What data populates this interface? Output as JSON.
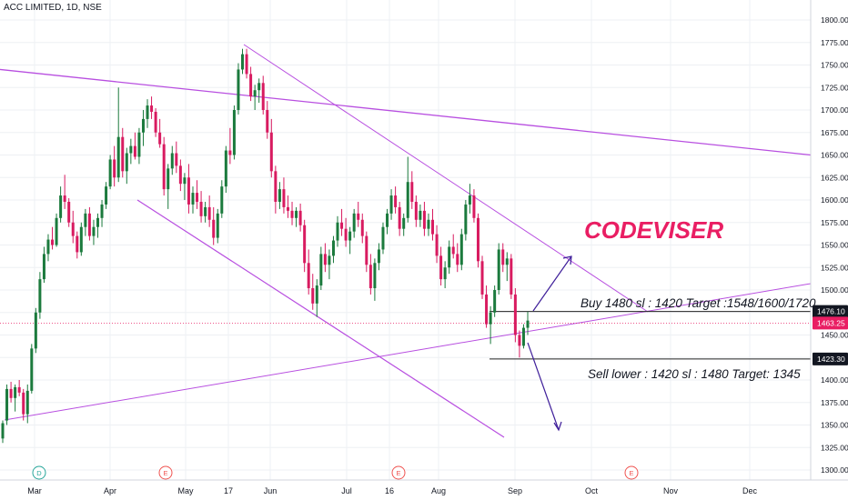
{
  "header": {
    "title": "ACC LIMITED, 1D, NSE"
  },
  "annotations": {
    "brand": "CODEVISER",
    "buy_note": "Buy 1480 sl : 1420 Target :1548/1600/1720",
    "sell_note": "Sell lower : 1420 sl : 1480 Target: 1345"
  },
  "colors": {
    "up": "#1b7a3d",
    "down": "#d81b60",
    "trendline": "#b84fe0",
    "arrow": "#3f1f9a",
    "level_line": "#222222",
    "price_line": "#e91e63"
  },
  "chart_data": {
    "type": "candlestick",
    "title": "ACC LIMITED, 1D, NSE",
    "ylim": [
      1290,
      1810
    ],
    "y_ticks": [
      1300,
      1325,
      1350,
      1375,
      1400,
      1425,
      1450,
      1475,
      1500,
      1525,
      1550,
      1575,
      1600,
      1625,
      1650,
      1675,
      1700,
      1725,
      1750,
      1775,
      1800
    ],
    "x_labels": [
      "Mar",
      "Apr",
      "May",
      "17",
      "Jun",
      "Jul",
      "16",
      "Aug",
      "Sep",
      "Oct",
      "Nov",
      "Dec"
    ],
    "grid": true,
    "price_labels": [
      {
        "value": 1476.1,
        "text": "1476.10",
        "style": "dark"
      },
      {
        "value": 1463.25,
        "text": "1463.25",
        "style": "accent"
      },
      {
        "value": 1423.3,
        "text": "1423.30",
        "style": "dark"
      }
    ],
    "horizontal_levels": [
      1476.1,
      1423.3
    ],
    "current_price": 1463.25,
    "event_markers": [
      {
        "label": "D",
        "near": "Mar"
      },
      {
        "label": "E",
        "near": "May"
      },
      {
        "label": "E",
        "near": "Aug"
      },
      {
        "label": "E",
        "near": "Oct/Nov"
      }
    ],
    "candles": [
      [
        1335,
        1355,
        1330,
        1352
      ],
      [
        1355,
        1395,
        1350,
        1390
      ],
      [
        1390,
        1398,
        1375,
        1380
      ],
      [
        1380,
        1395,
        1365,
        1392
      ],
      [
        1392,
        1400,
        1382,
        1386
      ],
      [
        1386,
        1390,
        1355,
        1362
      ],
      [
        1362,
        1395,
        1352,
        1388
      ],
      [
        1388,
        1440,
        1385,
        1435
      ],
      [
        1435,
        1480,
        1430,
        1475
      ],
      [
        1475,
        1520,
        1468,
        1512
      ],
      [
        1512,
        1548,
        1508,
        1540
      ],
      [
        1540,
        1562,
        1532,
        1556
      ],
      [
        1556,
        1570,
        1545,
        1550
      ],
      [
        1550,
        1585,
        1548,
        1580
      ],
      [
        1580,
        1615,
        1575,
        1605
      ],
      [
        1605,
        1628,
        1590,
        1598
      ],
      [
        1598,
        1602,
        1570,
        1575
      ],
      [
        1575,
        1588,
        1552,
        1560
      ],
      [
        1560,
        1565,
        1535,
        1542
      ],
      [
        1542,
        1575,
        1538,
        1570
      ],
      [
        1570,
        1590,
        1560,
        1585
      ],
      [
        1585,
        1592,
        1555,
        1560
      ],
      [
        1560,
        1578,
        1550,
        1570
      ],
      [
        1570,
        1585,
        1558,
        1580
      ],
      [
        1580,
        1600,
        1570,
        1595
      ],
      [
        1595,
        1620,
        1590,
        1615
      ],
      [
        1615,
        1650,
        1612,
        1645
      ],
      [
        1645,
        1660,
        1615,
        1625
      ],
      [
        1625,
        1725,
        1620,
        1670
      ],
      [
        1670,
        1680,
        1625,
        1632
      ],
      [
        1632,
        1658,
        1618,
        1652
      ],
      [
        1652,
        1668,
        1640,
        1660
      ],
      [
        1660,
        1675,
        1645,
        1648
      ],
      [
        1648,
        1680,
        1640,
        1675
      ],
      [
        1675,
        1700,
        1660,
        1690
      ],
      [
        1690,
        1712,
        1680,
        1705
      ],
      [
        1705,
        1715,
        1690,
        1698
      ],
      [
        1698,
        1702,
        1670,
        1675
      ],
      [
        1675,
        1690,
        1658,
        1662
      ],
      [
        1662,
        1670,
        1605,
        1612
      ],
      [
        1612,
        1640,
        1590,
        1635
      ],
      [
        1635,
        1660,
        1628,
        1652
      ],
      [
        1652,
        1665,
        1630,
        1638
      ],
      [
        1638,
        1645,
        1610,
        1618
      ],
      [
        1618,
        1630,
        1600,
        1625
      ],
      [
        1625,
        1640,
        1585,
        1595
      ],
      [
        1595,
        1615,
        1585,
        1608
      ],
      [
        1608,
        1622,
        1590,
        1598
      ],
      [
        1598,
        1610,
        1575,
        1582
      ],
      [
        1582,
        1598,
        1575,
        1592
      ],
      [
        1592,
        1605,
        1570,
        1578
      ],
      [
        1578,
        1592,
        1550,
        1558
      ],
      [
        1558,
        1590,
        1552,
        1585
      ],
      [
        1585,
        1622,
        1580,
        1615
      ],
      [
        1615,
        1660,
        1608,
        1655
      ],
      [
        1655,
        1680,
        1640,
        1650
      ],
      [
        1650,
        1705,
        1645,
        1700
      ],
      [
        1700,
        1752,
        1695,
        1745
      ],
      [
        1745,
        1768,
        1740,
        1762
      ],
      [
        1762,
        1768,
        1735,
        1740
      ],
      [
        1740,
        1748,
        1710,
        1715
      ],
      [
        1715,
        1728,
        1700,
        1722
      ],
      [
        1722,
        1735,
        1708,
        1730
      ],
      [
        1730,
        1738,
        1695,
        1700
      ],
      [
        1700,
        1710,
        1668,
        1675
      ],
      [
        1675,
        1690,
        1625,
        1632
      ],
      [
        1632,
        1638,
        1585,
        1598
      ],
      [
        1598,
        1620,
        1590,
        1612
      ],
      [
        1612,
        1625,
        1585,
        1592
      ],
      [
        1592,
        1605,
        1580,
        1588
      ],
      [
        1588,
        1598,
        1572,
        1580
      ],
      [
        1580,
        1592,
        1570,
        1588
      ],
      [
        1588,
        1596,
        1565,
        1572
      ],
      [
        1572,
        1578,
        1520,
        1530
      ],
      [
        1530,
        1545,
        1495,
        1502
      ],
      [
        1502,
        1518,
        1478,
        1485
      ],
      [
        1485,
        1512,
        1470,
        1505
      ],
      [
        1505,
        1548,
        1500,
        1540
      ],
      [
        1540,
        1552,
        1520,
        1528
      ],
      [
        1528,
        1545,
        1512,
        1538
      ],
      [
        1538,
        1560,
        1530,
        1555
      ],
      [
        1555,
        1582,
        1548,
        1575
      ],
      [
        1575,
        1590,
        1560,
        1568
      ],
      [
        1568,
        1580,
        1548,
        1555
      ],
      [
        1555,
        1570,
        1540,
        1565
      ],
      [
        1565,
        1590,
        1558,
        1585
      ],
      [
        1585,
        1598,
        1570,
        1578
      ],
      [
        1578,
        1585,
        1552,
        1560
      ],
      [
        1560,
        1565,
        1520,
        1528
      ],
      [
        1528,
        1540,
        1495,
        1502
      ],
      [
        1502,
        1535,
        1488,
        1530
      ],
      [
        1530,
        1552,
        1522,
        1545
      ],
      [
        1545,
        1575,
        1540,
        1570
      ],
      [
        1570,
        1590,
        1562,
        1585
      ],
      [
        1585,
        1612,
        1578,
        1605
      ],
      [
        1605,
        1615,
        1585,
        1592
      ],
      [
        1592,
        1598,
        1560,
        1568
      ],
      [
        1568,
        1585,
        1560,
        1580
      ],
      [
        1580,
        1648,
        1575,
        1620
      ],
      [
        1620,
        1632,
        1590,
        1598
      ],
      [
        1598,
        1605,
        1570,
        1578
      ],
      [
        1578,
        1595,
        1570,
        1588
      ],
      [
        1588,
        1598,
        1560,
        1568
      ],
      [
        1568,
        1585,
        1560,
        1578
      ],
      [
        1578,
        1590,
        1555,
        1562
      ],
      [
        1562,
        1572,
        1530,
        1538
      ],
      [
        1538,
        1548,
        1505,
        1512
      ],
      [
        1512,
        1532,
        1502,
        1525
      ],
      [
        1525,
        1555,
        1518,
        1548
      ],
      [
        1548,
        1562,
        1535,
        1540
      ],
      [
        1540,
        1552,
        1520,
        1528
      ],
      [
        1528,
        1568,
        1522,
        1562
      ],
      [
        1562,
        1600,
        1555,
        1595
      ],
      [
        1595,
        1618,
        1585,
        1605
      ],
      [
        1605,
        1612,
        1575,
        1580
      ],
      [
        1580,
        1585,
        1525,
        1532
      ],
      [
        1532,
        1538,
        1490,
        1495
      ],
      [
        1495,
        1505,
        1458,
        1462
      ],
      [
        1462,
        1482,
        1440,
        1475
      ],
      [
        1475,
        1505,
        1470,
        1500
      ],
      [
        1500,
        1552,
        1495,
        1545
      ],
      [
        1545,
        1552,
        1520,
        1528
      ],
      [
        1528,
        1542,
        1510,
        1535
      ],
      [
        1535,
        1540,
        1490,
        1495
      ],
      [
        1495,
        1502,
        1442,
        1450
      ],
      [
        1450,
        1455,
        1425,
        1438
      ],
      [
        1438,
        1462,
        1435,
        1458
      ],
      [
        1458,
        1476,
        1450,
        1466
      ]
    ]
  }
}
